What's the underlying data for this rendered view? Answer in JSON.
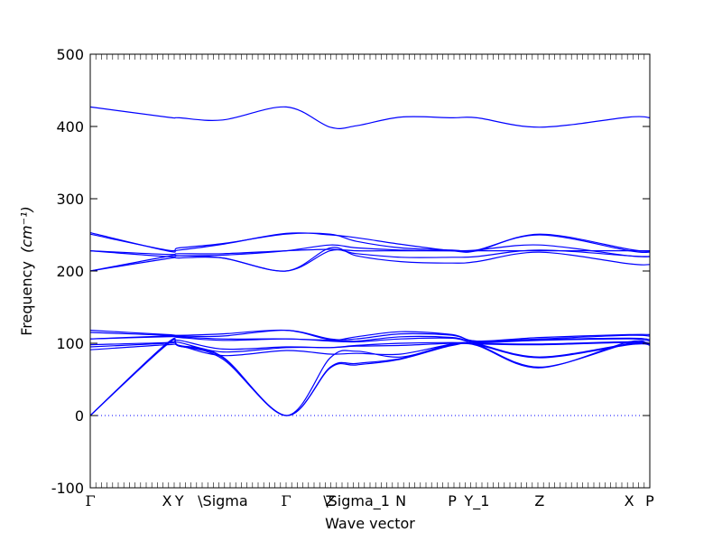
{
  "chart_data": {
    "type": "line",
    "xlabel": "Wave vector",
    "ylabel": "Frequency",
    "ylabel_unit": "(cm⁻¹)",
    "ylim": [
      -100,
      500
    ],
    "y_ticks": [
      -100,
      0,
      100,
      200,
      300,
      400,
      500
    ],
    "grid": false,
    "series_color": "#0000ff",
    "zero_line_color": "#0000ff",
    "k_labels": [
      {
        "label": "Γ",
        "x": 0.0
      },
      {
        "label": "X",
        "x": 0.137
      },
      {
        "label": "Y",
        "x": 0.159
      },
      {
        "label": "\\Sigma",
        "x": 0.237
      },
      {
        "label": "Γ",
        "x": 0.35
      },
      {
        "label": "Z",
        "x": 0.429
      },
      {
        "label": "\\Sigma_1",
        "x": 0.476
      },
      {
        "label": "N",
        "x": 0.555
      },
      {
        "label": "P",
        "x": 0.647
      },
      {
        "label": "Y_1",
        "x": 0.691
      },
      {
        "label": "Z",
        "x": 0.803
      },
      {
        "label": "X",
        "x": 0.963
      },
      {
        "label": "P",
        "x": 1.0
      }
    ],
    "x": [
      0.0,
      0.137,
      0.159,
      0.237,
      0.35,
      0.429,
      0.476,
      0.555,
      0.647,
      0.691,
      0.803,
      0.963,
      1.0
    ],
    "series": [
      {
        "values": [
          427,
          413,
          412,
          409,
          427,
          399,
          401,
          413,
          412,
          412,
          399,
          413,
          412
        ]
      },
      {
        "values": [
          253,
          228,
          229,
          237,
          252,
          250,
          246,
          237,
          228,
          228,
          251,
          230,
          227
        ]
      },
      {
        "values": [
          251,
          229,
          232,
          238,
          251,
          251,
          241,
          232,
          229,
          229,
          250,
          228,
          226
        ]
      },
      {
        "values": [
          228,
          223,
          224,
          224,
          228,
          230,
          228,
          228,
          228,
          228,
          228,
          228,
          228
        ]
      },
      {
        "values": [
          228,
          220,
          221,
          222,
          228,
          236,
          232,
          229,
          228,
          229,
          236,
          221,
          220
        ]
      },
      {
        "values": [
          200,
          220,
          221,
          218,
          200,
          228,
          224,
          219,
          219,
          220,
          229,
          221,
          220
        ]
      },
      {
        "values": [
          200,
          217,
          218,
          218,
          200,
          232,
          221,
          213,
          211,
          213,
          226,
          210,
          209
        ]
      },
      {
        "values": [
          118,
          112,
          111,
          113,
          118,
          105,
          109,
          116,
          112,
          103,
          108,
          112,
          112
        ]
      },
      {
        "values": [
          115,
          111,
          110,
          110,
          118,
          106,
          106,
          113,
          111,
          103,
          106,
          111,
          110
        ]
      },
      {
        "values": [
          106,
          110,
          109,
          106,
          106,
          104,
          103,
          109,
          108,
          102,
          105,
          107,
          105
        ]
      },
      {
        "values": [
          106,
          109,
          108,
          104,
          106,
          103,
          102,
          106,
          107,
          101,
          104,
          106,
          103
        ]
      },
      {
        "values": [
          98,
          101,
          104,
          92,
          95,
          94,
          97,
          100,
          101,
          100,
          99,
          102,
          100
        ]
      },
      {
        "values": [
          95,
          100,
          101,
          88,
          94,
          94,
          96,
          97,
          100,
          99,
          98,
          101,
          99
        ]
      },
      {
        "values": [
          91,
          98,
          97,
          83,
          90,
          85,
          86,
          85,
          99,
          99,
          81,
          99,
          98
        ]
      },
      {
        "values": [
          0,
          100,
          97,
          81,
          0,
          80,
          89,
          81,
          99,
          98,
          80,
          98,
          98
        ]
      },
      {
        "values": [
          0,
          99,
          96,
          80,
          0,
          67,
          72,
          79,
          98,
          98,
          67,
          100,
          98
        ]
      },
      {
        "values": [
          0,
          98,
          96,
          78,
          0,
          66,
          70,
          78,
          97,
          97,
          66,
          102,
          97
        ]
      }
    ]
  }
}
